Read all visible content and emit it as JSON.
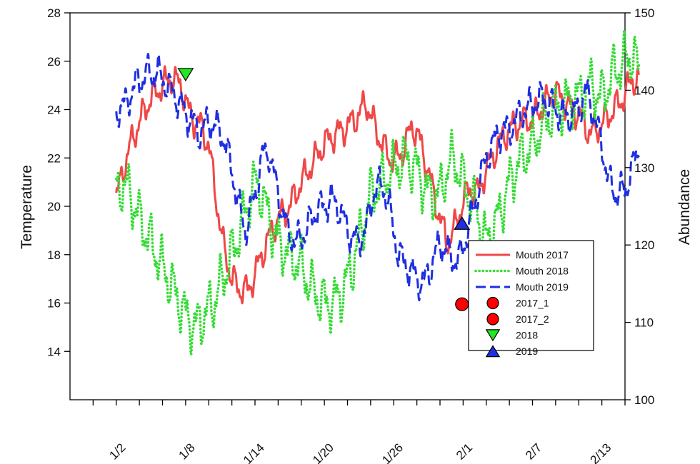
{
  "chart_data": {
    "type": "line",
    "ylabel": "Temperature",
    "y2label": "Abundance",
    "ylim": [
      12,
      28
    ],
    "y2lim": [
      100,
      150
    ],
    "y_ticks": [
      14,
      16,
      18,
      20,
      22,
      24,
      26,
      28
    ],
    "y2_ticks": [
      100,
      110,
      120,
      130,
      140,
      150
    ],
    "x_range": [
      -1,
      23
    ],
    "x_tick_labels": [
      "1/2",
      "1/8",
      "1/14",
      "1/20",
      "1/26",
      "2/1",
      "2/7",
      "2/13"
    ],
    "x_tick_label_positions": [
      1,
      4,
      7,
      10,
      13,
      16,
      19,
      22
    ],
    "grid": false,
    "legend_position": "right",
    "series": [
      {
        "name": "Mouth 2017",
        "style": "solid",
        "color": "#f04848",
        "axis": "left",
        "amplitude": 0.45,
        "x": [
          1.0,
          1.3,
          1.6,
          2.0,
          2.5,
          3.0,
          3.4,
          3.8,
          4.1,
          4.4,
          4.7,
          5.0,
          5.3,
          5.6,
          6.0,
          6.3,
          6.7,
          7.0,
          7.5,
          8.0,
          8.5,
          9.0,
          9.5,
          10.0,
          10.5,
          11.0,
          11.5,
          11.8,
          12.3,
          12.8,
          13.2,
          13.5,
          13.8,
          14.2,
          14.6,
          15.0,
          15.3,
          15.6,
          16.0,
          16.3,
          16.6,
          17.0,
          17.5,
          18.0,
          18.5,
          19.0,
          19.5,
          20.0,
          20.5,
          21.0,
          21.5,
          22.0,
          22.5,
          23.0,
          23.3,
          23.6
        ],
        "values": [
          20.3,
          21.5,
          22.5,
          23.5,
          24.5,
          25.0,
          25.3,
          25.0,
          24.0,
          23.5,
          23.3,
          22.5,
          20.5,
          18.5,
          17.0,
          16.6,
          16.5,
          17.2,
          18.5,
          19.5,
          20.0,
          21.0,
          21.8,
          22.6,
          23.0,
          23.3,
          23.8,
          24.3,
          23.0,
          22.0,
          22.0,
          22.5,
          23.4,
          22.5,
          21.0,
          19.5,
          18.5,
          19.0,
          20.2,
          20.8,
          20.5,
          21.5,
          22.5,
          23.2,
          23.5,
          23.6,
          24.2,
          24.7,
          24.2,
          23.8,
          23.0,
          23.4,
          24.0,
          24.6,
          25.3,
          25.1
        ]
      },
      {
        "name": "Mouth 2018",
        "style": "dotted",
        "color": "#35dc35",
        "axis": "left",
        "amplitude": 0.8,
        "x": [
          1.0,
          1.3,
          1.6,
          2.0,
          2.5,
          3.0,
          3.5,
          4.0,
          4.4,
          4.8,
          5.2,
          5.6,
          6.0,
          6.5,
          7.0,
          7.3,
          7.6,
          8.0,
          8.5,
          9.0,
          9.5,
          10.0,
          10.4,
          10.8,
          11.2,
          11.6,
          12.0,
          12.5,
          13.0,
          13.5,
          14.0,
          14.5,
          15.0,
          15.3,
          15.6,
          16.0,
          16.5,
          17.0,
          17.5,
          18.0,
          18.5,
          19.0,
          19.5,
          20.0,
          20.5,
          21.0,
          21.5,
          22.0,
          22.5,
          23.0,
          23.3,
          23.6
        ],
        "values": [
          20.5,
          21.0,
          20.5,
          19.5,
          18.5,
          17.5,
          16.5,
          15.5,
          15.0,
          15.5,
          16.0,
          17.0,
          18.0,
          19.5,
          21.0,
          20.5,
          19.5,
          18.5,
          18.0,
          17.5,
          16.5,
          16.0,
          16.0,
          16.5,
          17.5,
          19.0,
          20.5,
          21.0,
          21.5,
          22.0,
          21.5,
          20.5,
          20.5,
          21.5,
          22.0,
          21.0,
          20.0,
          18.5,
          19.5,
          21.0,
          22.0,
          22.5,
          23.5,
          24.0,
          24.3,
          24.5,
          25.0,
          24.5,
          25.5,
          26.0,
          26.3,
          25.6
        ]
      },
      {
        "name": "Mouth 2019",
        "style": "dashed",
        "color": "#1f2fe0",
        "axis": "left",
        "amplitude": 0.5,
        "x": [
          1.0,
          1.4,
          1.8,
          2.3,
          2.8,
          3.2,
          3.6,
          4.0,
          4.3,
          4.6,
          5.0,
          5.3,
          5.6,
          6.0,
          6.3,
          6.6,
          7.0,
          7.3,
          7.6,
          8.0,
          8.4,
          8.8,
          9.2,
          9.6,
          10.0,
          10.3,
          10.6,
          11.0,
          11.4,
          11.8,
          12.1,
          12.5,
          12.8,
          13.2,
          13.6,
          14.0,
          14.3,
          14.6,
          15.0,
          15.4,
          15.8,
          16.2,
          16.6,
          17.0,
          17.5,
          18.0,
          18.5,
          19.0,
          19.5,
          20.0,
          20.5,
          21.0,
          21.3,
          21.6,
          22.0,
          22.3,
          22.6,
          23.0,
          23.3,
          23.6
        ],
        "values": [
          24.0,
          24.2,
          25.0,
          25.5,
          25.5,
          25.0,
          24.5,
          23.8,
          23.5,
          23.0,
          23.5,
          23.3,
          23.0,
          21.5,
          20.0,
          19.0,
          20.5,
          22.0,
          22.3,
          20.5,
          19.0,
          18.5,
          19.0,
          19.8,
          20.0,
          20.3,
          20.0,
          19.0,
          18.5,
          19.0,
          20.5,
          21.0,
          20.0,
          18.0,
          17.5,
          17.0,
          16.8,
          17.5,
          18.5,
          18.0,
          17.7,
          19.0,
          20.5,
          22.0,
          23.0,
          23.2,
          23.8,
          24.2,
          24.5,
          24.0,
          23.7,
          24.0,
          24.8,
          24.0,
          22.5,
          21.0,
          20.5,
          20.7,
          21.5,
          22.5
        ]
      }
    ],
    "markers": [
      {
        "name": "2017_1",
        "shape": "circle",
        "color": "#ff0000",
        "x": 15.95,
        "y": 15.95
      },
      {
        "name": "2017_2",
        "shape": "circle",
        "color": "#ff0000",
        "x": 16.95,
        "y": 15.95
      },
      {
        "name": "2018",
        "shape": "triangle-down",
        "color": "#22e622",
        "x": 4.0,
        "y": 25.45
      },
      {
        "name": "2019",
        "shape": "triangle-up",
        "color": "#1f2fe0",
        "x": 15.95,
        "y": 19.3
      }
    ]
  }
}
